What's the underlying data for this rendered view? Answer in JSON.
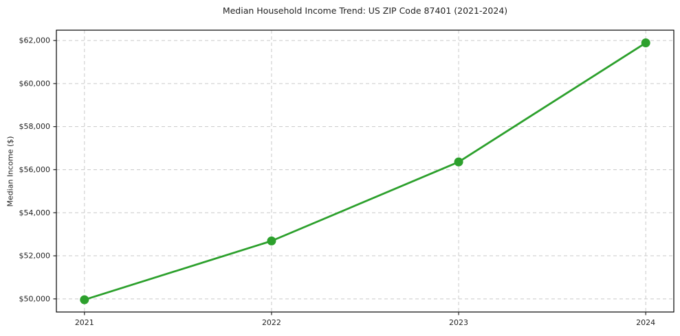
{
  "page": {
    "background": "#ffffff"
  },
  "chart_data": {
    "type": "line",
    "title": "Median Household Income Trend: US ZIP Code 87401 (2021-2024)",
    "xlabel": "",
    "ylabel": "Median Income ($)",
    "x": [
      2021,
      2022,
      2023,
      2024
    ],
    "x_tick_labels": [
      "2021",
      "2022",
      "2023",
      "2024"
    ],
    "y_ticks": [
      50000,
      52000,
      54000,
      56000,
      58000,
      60000,
      62000
    ],
    "y_tick_labels": [
      "$50,000",
      "$52,000",
      "$54,000",
      "$56,000",
      "$58,000",
      "$60,000",
      "$62,000"
    ],
    "series": [
      {
        "name": "Median Household Income",
        "values": [
          49960,
          52690,
          56360,
          61890
        ],
        "color": "#2ca02c",
        "marker": "circle"
      }
    ],
    "xlim": [
      2020.85,
      2024.15
    ],
    "ylim": [
      49390,
      62480
    ],
    "grid": {
      "show": true,
      "style": "dashed",
      "axes": "both",
      "color": "#c9c9c9"
    },
    "legend": {
      "show": false
    },
    "frame_color": "#000000",
    "tick_color": "#1f1f1f",
    "text_color": "#1f1f1f"
  }
}
